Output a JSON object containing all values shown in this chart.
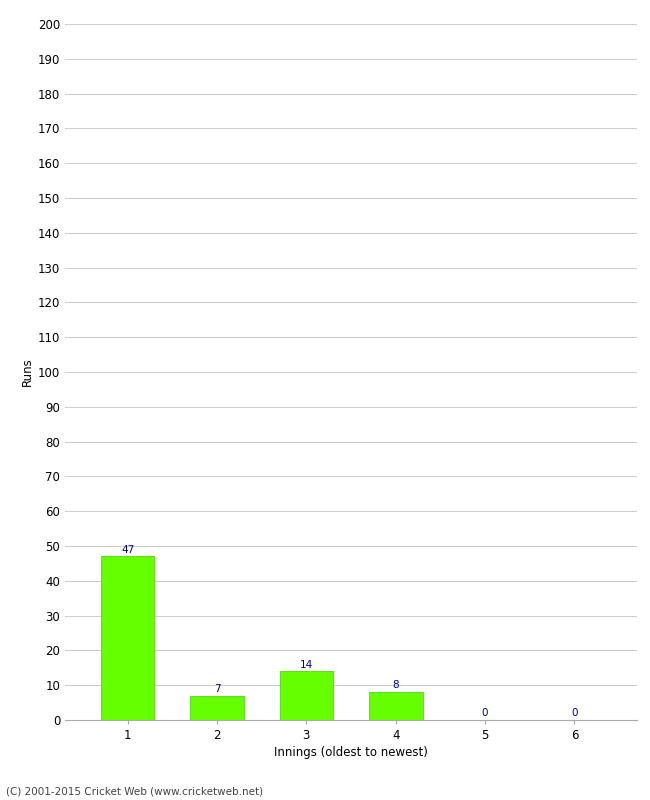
{
  "categories": [
    1,
    2,
    3,
    4,
    5,
    6
  ],
  "values": [
    47,
    7,
    14,
    8,
    0,
    0
  ],
  "bar_color": "#66ff00",
  "bar_edge_color": "#44cc00",
  "label_color": "#000099",
  "xlabel": "Innings (oldest to newest)",
  "ylabel": "Runs",
  "ylim": [
    0,
    200
  ],
  "yticks": [
    0,
    10,
    20,
    30,
    40,
    50,
    60,
    70,
    80,
    90,
    100,
    110,
    120,
    130,
    140,
    150,
    160,
    170,
    180,
    190,
    200
  ],
  "footer": "(C) 2001-2015 Cricket Web (www.cricketweb.net)",
  "background_color": "#ffffff",
  "grid_color": "#cccccc",
  "label_fontsize": 7.5,
  "axis_fontsize": 8.5,
  "footer_fontsize": 7.5,
  "tick_label_color": "#000000"
}
